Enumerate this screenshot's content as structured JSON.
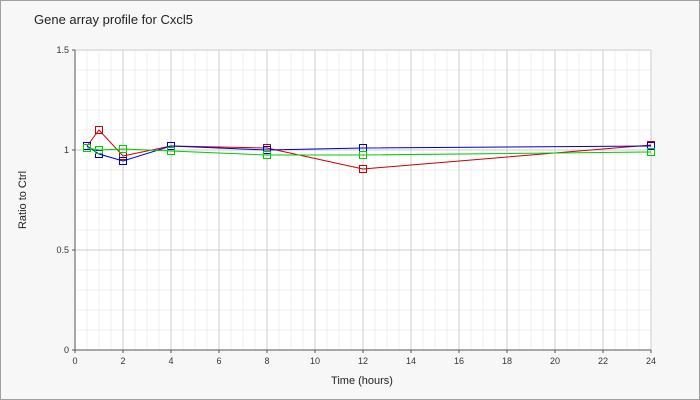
{
  "chart_data": {
    "type": "line",
    "title": "Gene array profile for Cxcl5",
    "xlabel": "Time (hours)",
    "ylabel": "Ratio to Ctrl",
    "xlim": [
      0,
      24
    ],
    "ylim": [
      0,
      1.5
    ],
    "x_ticks": [
      0,
      2,
      4,
      6,
      8,
      10,
      12,
      14,
      16,
      18,
      20,
      22,
      24
    ],
    "y_ticks": [
      0,
      0.5,
      1,
      1.5
    ],
    "y_tick_labels": [
      "0",
      "0.5",
      "1",
      "1.5"
    ],
    "grid": true,
    "legend": "none",
    "series": [
      {
        "color": "#cc0000",
        "marker": "square",
        "x": [
          0.5,
          1,
          2,
          4,
          8,
          12,
          24
        ],
        "y": [
          1.02,
          1.1,
          0.97,
          1.02,
          1.01,
          0.905,
          1.025
        ]
      },
      {
        "color": "#0000cc",
        "marker": "square",
        "x": [
          0.5,
          1,
          2,
          4,
          8,
          12,
          24
        ],
        "y": [
          1.02,
          0.98,
          0.945,
          1.02,
          1.0,
          1.01,
          1.02
        ]
      },
      {
        "color": "#00cc00",
        "marker": "square",
        "x": [
          0.5,
          1,
          2,
          4,
          8,
          12,
          24
        ],
        "y": [
          1.01,
          1.0,
          1.005,
          0.995,
          0.975,
          0.975,
          0.99
        ]
      }
    ]
  }
}
